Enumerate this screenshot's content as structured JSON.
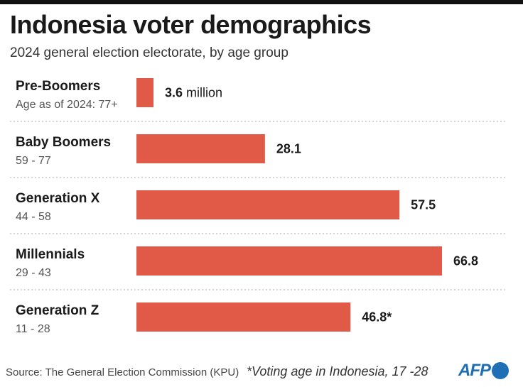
{
  "header": {
    "title": "Indonesia voter demographics",
    "subtitle": "2024 general election electorate, by age group"
  },
  "chart_data": {
    "type": "bar",
    "orientation": "horizontal",
    "title": "Indonesia voter demographics",
    "subtitle": "2024 general election electorate, by age group",
    "unit": "million",
    "categories": [
      "Pre-Boomers",
      "Baby Boomers",
      "Generation X",
      "Millennials",
      "Generation Z"
    ],
    "age_ranges": [
      "Age as of 2024: 77+",
      "59 - 77",
      "44 - 58",
      "29 - 43",
      "11 - 28"
    ],
    "values": [
      3.6,
      28.1,
      57.5,
      66.8,
      46.8
    ],
    "value_labels": [
      "3.6",
      "28.1",
      "57.5",
      "66.8",
      "46.8*"
    ],
    "first_label_unit": "million",
    "bar_color": "#e05a47",
    "xlim": [
      0,
      70
    ]
  },
  "footer": {
    "source": "Source: The General Election Commission (KPU)",
    "note": "*Voting age in Indonesia, 17 -28",
    "logo": "AFP"
  },
  "colors": {
    "brand": "#1f6fb5",
    "bar": "#e05a47"
  }
}
